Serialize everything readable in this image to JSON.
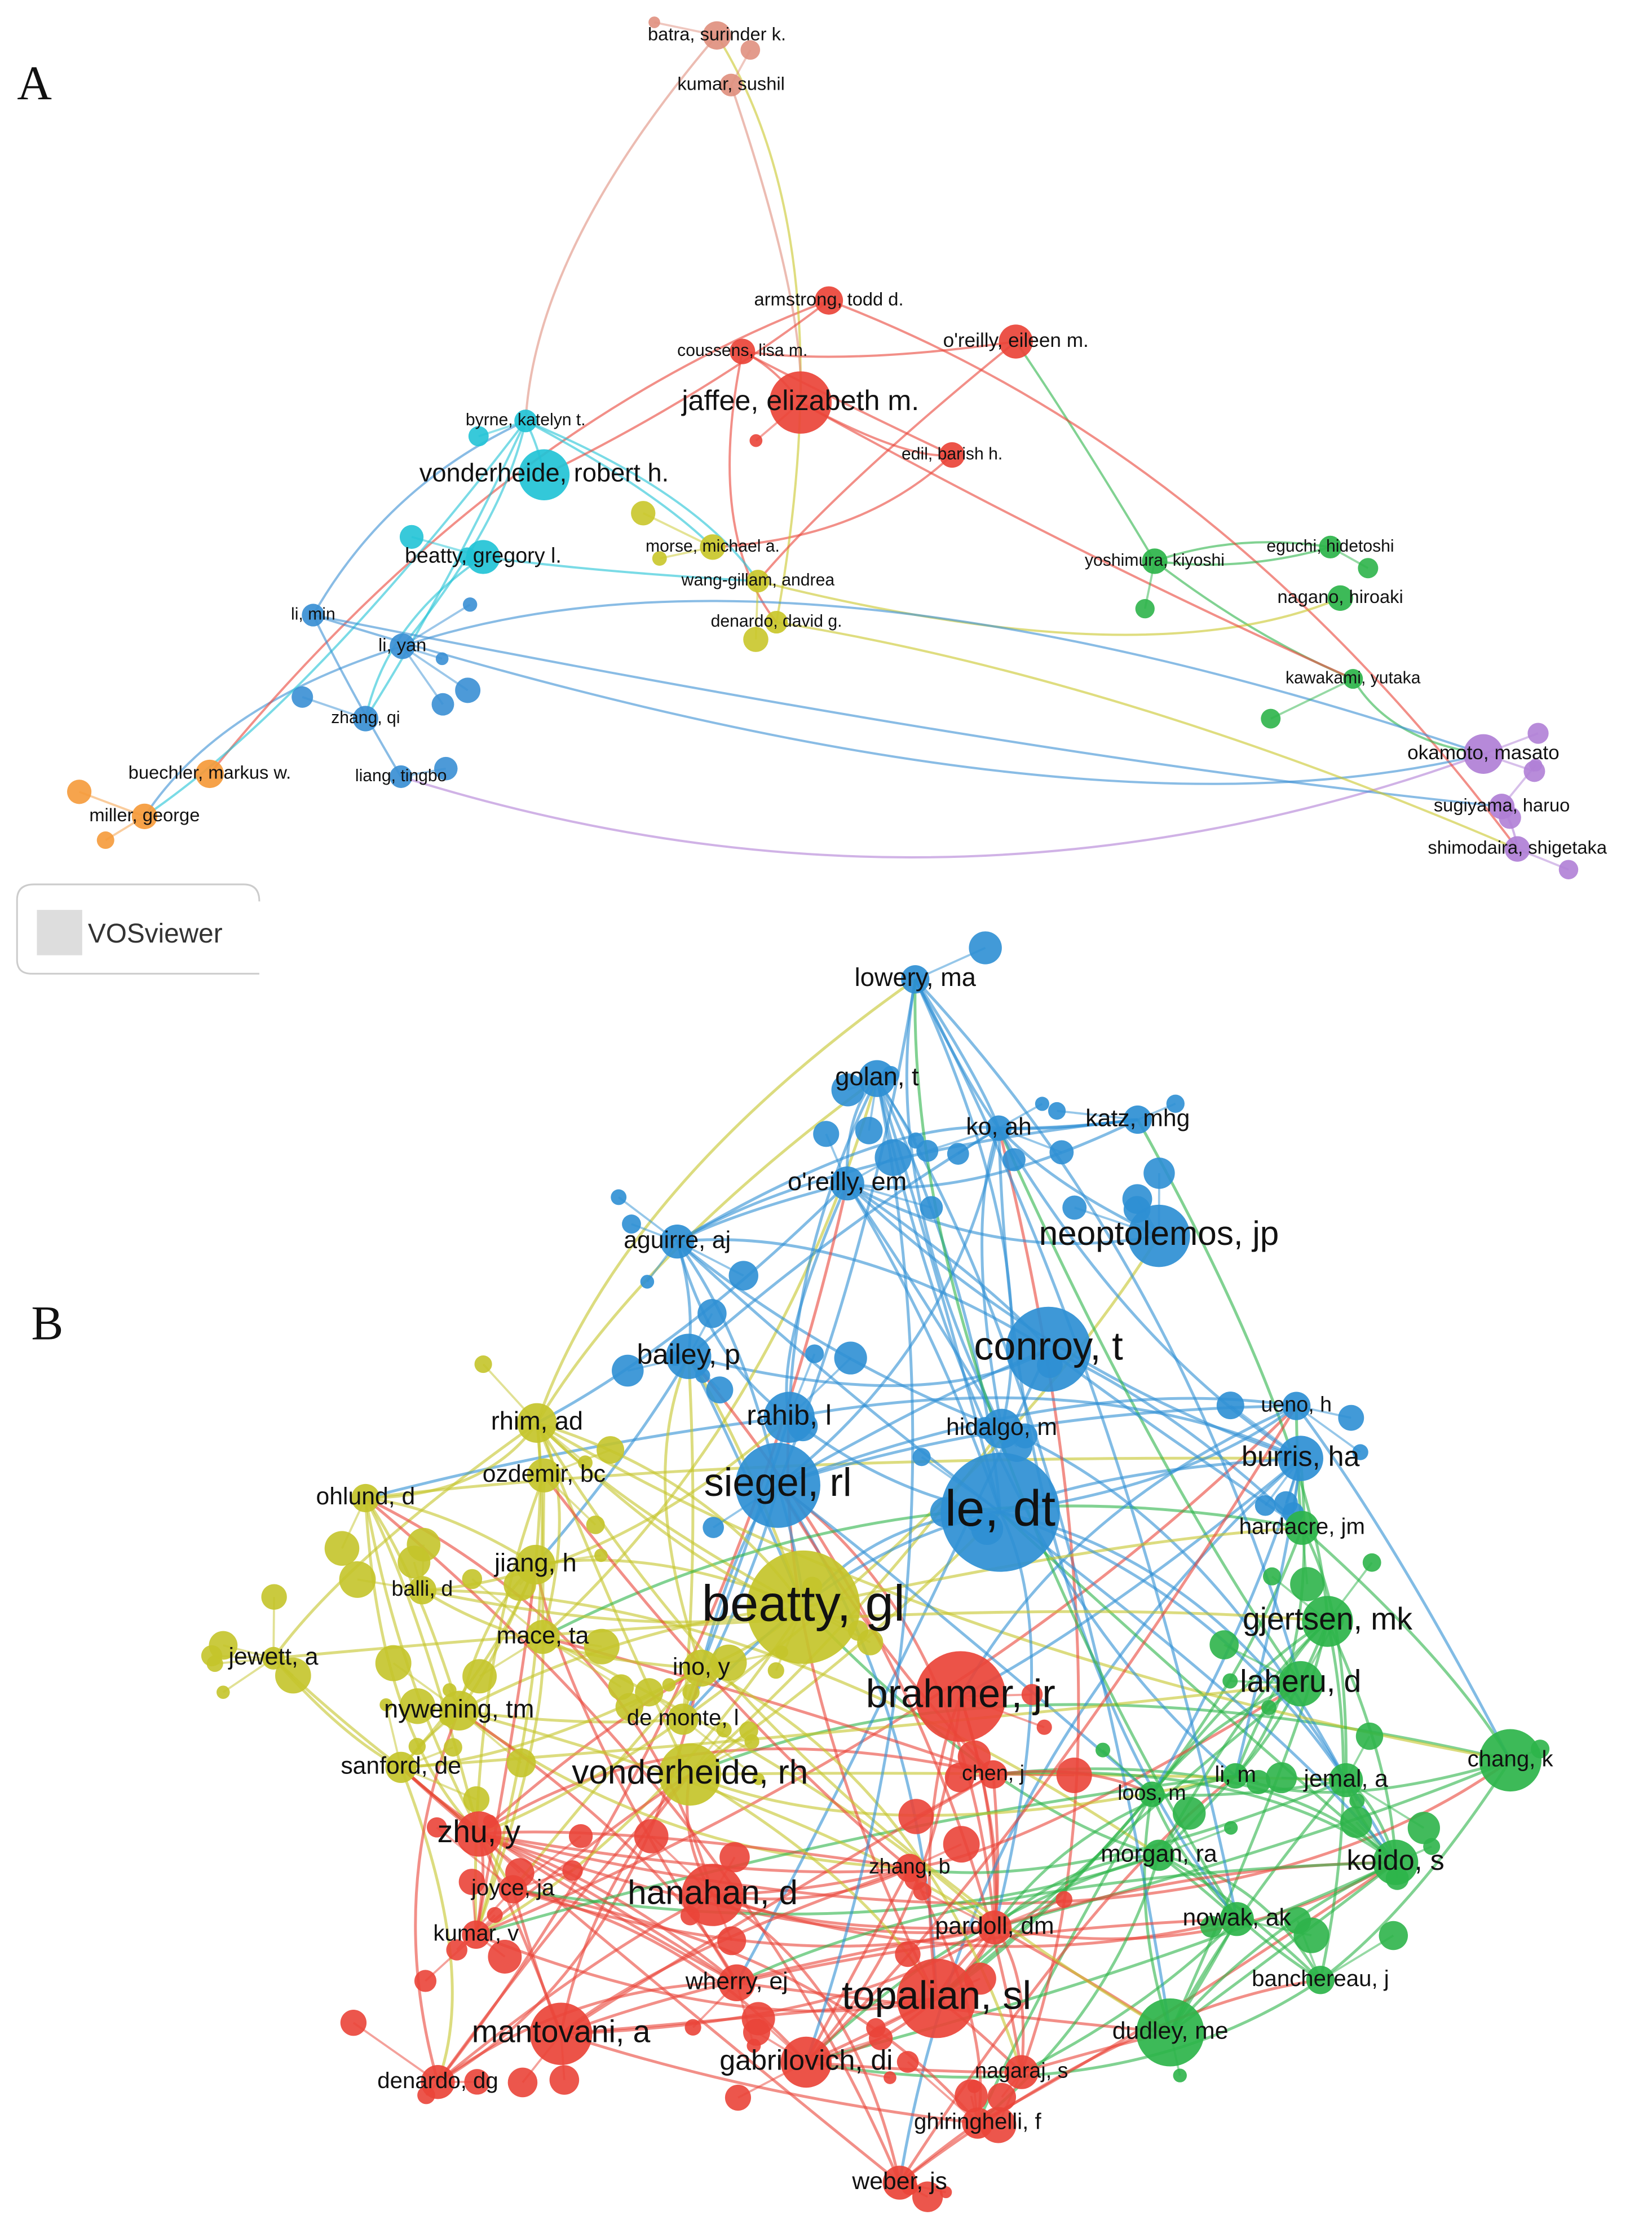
{
  "panels": [
    {
      "label": "A",
      "watermark": "VOSviewer",
      "nodes": [
        {
          "label": "batra, surinder k.",
          "color": "#e0907f"
        },
        {
          "label": "kumar, sushil",
          "color": "#e0907f"
        },
        {
          "label": "armstrong, todd d.",
          "color": "#ea4438"
        },
        {
          "label": "coussens, lisa m.",
          "color": "#ea4438"
        },
        {
          "label": "o'reilly, eileen m.",
          "color": "#ea4438"
        },
        {
          "label": "jaffee, elizabeth m.",
          "color": "#ea4438"
        },
        {
          "label": "byrne, katelyn t.",
          "color": "#22c3d6"
        },
        {
          "label": "vonderheide, robert h.",
          "color": "#22c3d6"
        },
        {
          "label": "edil, barish h.",
          "color": "#ea4438"
        },
        {
          "label": "beatty, gregory l.",
          "color": "#22c3d6"
        },
        {
          "label": "morse, michael a.",
          "color": "#c9c72a"
        },
        {
          "label": "wang-gillam, andrea",
          "color": "#c9c72a"
        },
        {
          "label": "denardo, david g.",
          "color": "#c9c72a"
        },
        {
          "label": "yoshimura, kiyoshi",
          "color": "#2db44a"
        },
        {
          "label": "eguchi, hidetoshi",
          "color": "#2db44a"
        },
        {
          "label": "nagano, hiroaki",
          "color": "#2db44a"
        },
        {
          "label": "kawakami, yutaka",
          "color": "#2db44a"
        },
        {
          "label": "li, min",
          "color": "#3a8fd4"
        },
        {
          "label": "li, yan",
          "color": "#3a8fd4"
        },
        {
          "label": "zhang, qi",
          "color": "#3a8fd4"
        },
        {
          "label": "liang, tingbo",
          "color": "#3a8fd4"
        },
        {
          "label": "buechler, markus w.",
          "color": "#f59a3a"
        },
        {
          "label": "miller, george",
          "color": "#f59a3a"
        },
        {
          "label": "okamoto, masato",
          "color": "#b07fd6"
        },
        {
          "label": "sugiyama, haruo",
          "color": "#b07fd6"
        },
        {
          "label": "shimodaira, shigetaka",
          "color": "#b07fd6"
        }
      ]
    },
    {
      "label": "B",
      "nodes": [
        {
          "label": "lowery, ma",
          "color": "#2e8fd4"
        },
        {
          "label": "golan, t",
          "color": "#2e8fd4"
        },
        {
          "label": "ko, ah",
          "color": "#2e8fd4"
        },
        {
          "label": "katz, mhg",
          "color": "#2e8fd4"
        },
        {
          "label": "o'reilly, em",
          "color": "#2e8fd4"
        },
        {
          "label": "neoptolemos, jp",
          "color": "#2e8fd4"
        },
        {
          "label": "aguirre, aj",
          "color": "#2e8fd4"
        },
        {
          "label": "conroy, t",
          "color": "#2e8fd4"
        },
        {
          "label": "bailey, p",
          "color": "#2e8fd4"
        },
        {
          "label": "ueno, h",
          "color": "#2e8fd4"
        },
        {
          "label": "rahib, l",
          "color": "#2e8fd4"
        },
        {
          "label": "rhim, ad",
          "color": "#c4c42a"
        },
        {
          "label": "hidalgo, m",
          "color": "#2e8fd4"
        },
        {
          "label": "siegel, rl",
          "color": "#2e8fd4"
        },
        {
          "label": "ozdemir, bc",
          "color": "#c4c42a"
        },
        {
          "label": "ohlund, d",
          "color": "#c4c42a"
        },
        {
          "label": "burris, ha",
          "color": "#2e8fd4"
        },
        {
          "label": "le, dt",
          "color": "#2e8fd4"
        },
        {
          "label": "hardacre, jm",
          "color": "#2db44a"
        },
        {
          "label": "jiang, h",
          "color": "#c4c42a"
        },
        {
          "label": "balli, d",
          "color": "#c4c42a"
        },
        {
          "label": "beatty, gl",
          "color": "#c4c42a"
        },
        {
          "label": "gjertsen, mk",
          "color": "#2db44a"
        },
        {
          "label": "mace, ta",
          "color": "#c4c42a"
        },
        {
          "label": "jewett, a",
          "color": "#c4c42a"
        },
        {
          "label": "ino, y",
          "color": "#c4c42a"
        },
        {
          "label": "brahmer, jr",
          "color": "#ea4438"
        },
        {
          "label": "laheru, d",
          "color": "#2db44a"
        },
        {
          "label": "nywening, tm",
          "color": "#c4c42a"
        },
        {
          "label": "de monte, l",
          "color": "#c4c42a"
        },
        {
          "label": "sanford, de",
          "color": "#c4c42a"
        },
        {
          "label": "vonderheide, rh",
          "color": "#c4c42a"
        },
        {
          "label": "chen, j",
          "color": "#ea4438"
        },
        {
          "label": "li, m",
          "color": "#2db44a"
        },
        {
          "label": "jemal, a",
          "color": "#2db44a"
        },
        {
          "label": "chang, k",
          "color": "#2db44a"
        },
        {
          "label": "loos, m",
          "color": "#2db44a"
        },
        {
          "label": "zhu, y",
          "color": "#ea4438"
        },
        {
          "label": "koido, s",
          "color": "#2db44a"
        },
        {
          "label": "morgan, ra",
          "color": "#2db44a"
        },
        {
          "label": "zhang, b",
          "color": "#ea4438"
        },
        {
          "label": "joyce, ja",
          "color": "#ea4438"
        },
        {
          "label": "hanahan, d",
          "color": "#ea4438"
        },
        {
          "label": "nowak, ak",
          "color": "#2db44a"
        },
        {
          "label": "kumar, v",
          "color": "#ea4438"
        },
        {
          "label": "pardoll, dm",
          "color": "#ea4438"
        },
        {
          "label": "banchereau, j",
          "color": "#2db44a"
        },
        {
          "label": "wherry, ej",
          "color": "#ea4438"
        },
        {
          "label": "topalian, sl",
          "color": "#ea4438"
        },
        {
          "label": "mantovani, a",
          "color": "#ea4438"
        },
        {
          "label": "dudley, me",
          "color": "#2db44a"
        },
        {
          "label": "gabrilovich, di",
          "color": "#ea4438"
        },
        {
          "label": "denardo, dg",
          "color": "#ea4438"
        },
        {
          "label": "nagaraj, s",
          "color": "#ea4438"
        },
        {
          "label": "ghiringhelli, f",
          "color": "#ea4438"
        },
        {
          "label": "weber, js",
          "color": "#ea4438"
        }
      ]
    }
  ]
}
